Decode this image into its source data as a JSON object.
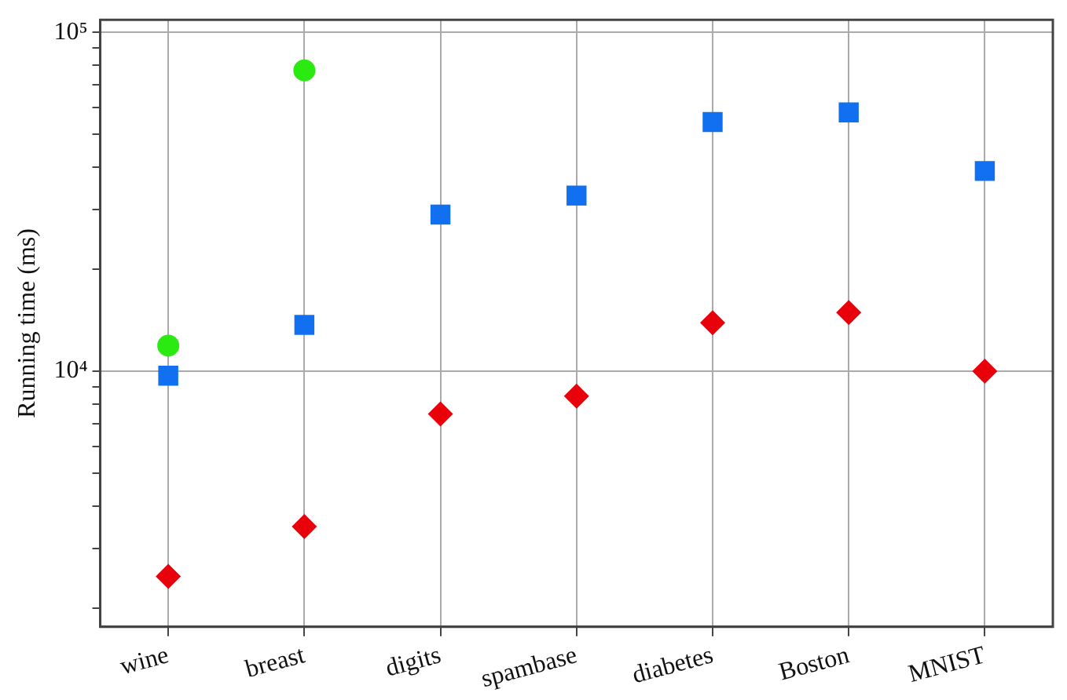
{
  "chart_data": {
    "type": "scatter",
    "ylabel": "Running time (ms)",
    "log": "y",
    "grid": true,
    "legend": false,
    "categories": [
      "wine",
      "breast",
      "digits",
      "spambase",
      "diabetes",
      "Boston",
      "MNIST"
    ],
    "ylim": [
      1760,
      109000
    ],
    "yticks": [
      {
        "value": 2000,
        "label": null
      },
      {
        "value": 3000,
        "label": null
      },
      {
        "value": 4000,
        "label": null
      },
      {
        "value": 5000,
        "label": null
      },
      {
        "value": 6000,
        "label": null
      },
      {
        "value": 7000,
        "label": null
      },
      {
        "value": 8000,
        "label": null
      },
      {
        "value": 9000,
        "label": null
      },
      {
        "value": 10000,
        "label": "10⁴"
      },
      {
        "value": 20000,
        "label": null
      },
      {
        "value": 30000,
        "label": null
      },
      {
        "value": 40000,
        "label": null
      },
      {
        "value": 50000,
        "label": null
      },
      {
        "value": 60000,
        "label": null
      },
      {
        "value": 70000,
        "label": null
      },
      {
        "value": 80000,
        "label": null
      },
      {
        "value": 90000,
        "label": null
      },
      {
        "value": 100000,
        "label": "10⁵"
      }
    ],
    "series": [
      {
        "color": "#1170f0",
        "marker": "square",
        "values": [
          9700,
          13700,
          29000,
          33000,
          54400,
          58100,
          39000
        ]
      },
      {
        "color": "#e8000b",
        "marker": "diamond",
        "values": [
          2480,
          3480,
          7480,
          8440,
          13900,
          14900,
          10000
        ]
      },
      {
        "color": "#2bea12",
        "marker": "circle",
        "values": [
          11900,
          77300,
          null,
          null,
          null,
          null,
          null
        ]
      }
    ]
  }
}
